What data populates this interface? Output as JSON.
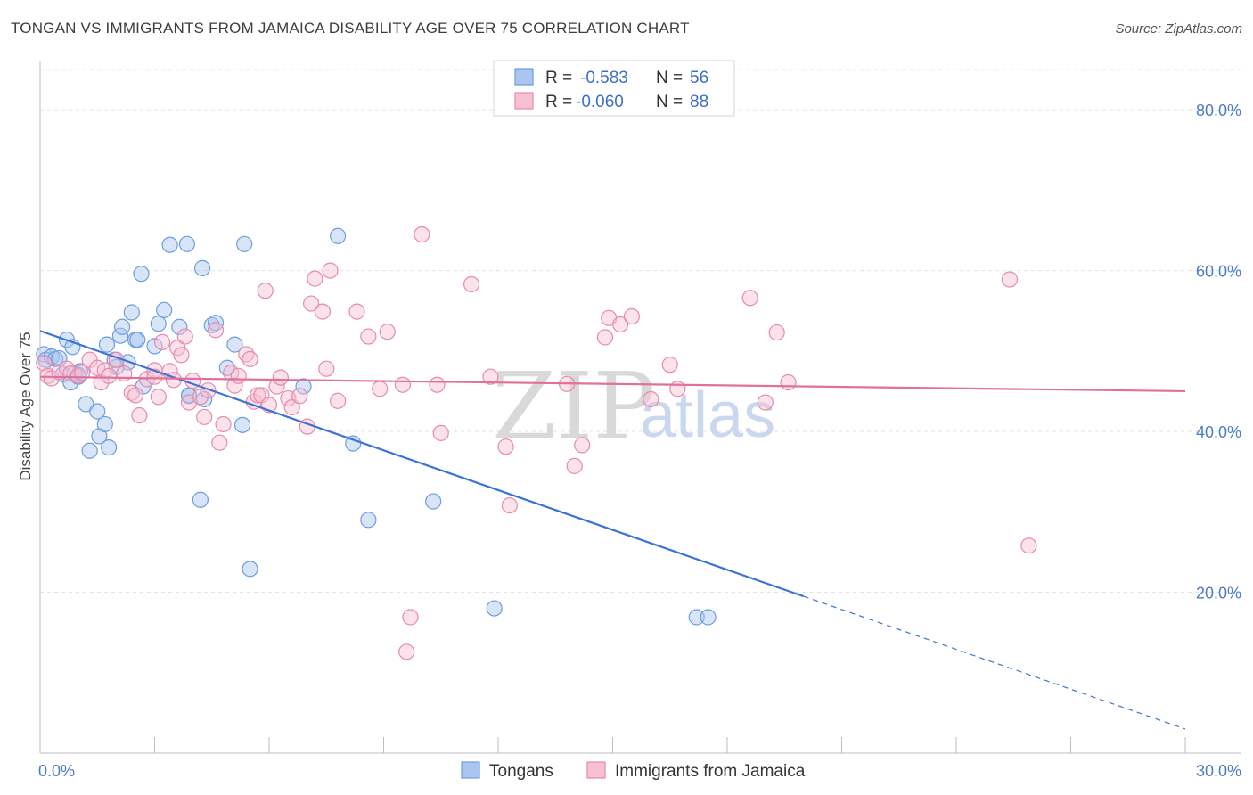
{
  "title": "TONGAN VS IMMIGRANTS FROM JAMAICA DISABILITY AGE OVER 75 CORRELATION CHART",
  "source": "Source: ZipAtlas.com",
  "watermark": {
    "zip": "ZIP",
    "atlas": "atlas"
  },
  "legend": {
    "rows": [
      {
        "r_label": "R =",
        "r_value": "-0.583",
        "n_label": "N =",
        "n_value": "56",
        "color": "#a9c6ee",
        "stroke": "#6d9de0"
      },
      {
        "r_label": "R =",
        "r_value": "-0.060",
        "n_label": "N =",
        "n_value": "88",
        "color": "#f7bfd2",
        "stroke": "#e88aad"
      }
    ]
  },
  "chart_data": {
    "type": "scatter",
    "title": "TONGAN VS IMMIGRANTS FROM JAMAICA DISABILITY AGE OVER 75 CORRELATION CHART",
    "xlabel": "",
    "ylabel": "Disability Age Over 75",
    "xlim": [
      0,
      30
    ],
    "ylim": [
      0,
      85
    ],
    "x_ticks": [
      {
        "value": 0,
        "label": "0.0%"
      },
      {
        "value": 30,
        "label": "30.0%"
      }
    ],
    "y_ticks": [
      {
        "value": 20,
        "label": "20.0%"
      },
      {
        "value": 40,
        "label": "40.0%"
      },
      {
        "value": 60,
        "label": "60.0%"
      },
      {
        "value": 80,
        "label": "80.0%"
      }
    ],
    "grid": true,
    "legend_position": "top-center",
    "series": [
      {
        "name": "Tongans",
        "color": "#6d9de0",
        "fill": "#a9c6ee",
        "line_color": "#3b74d4",
        "trend": {
          "x0": 0,
          "y0": 52.5,
          "x1": 20.0,
          "y1": 19.5,
          "extend_x": 30,
          "extend_y": 3.0
        },
        "points": [
          [
            0.1,
            49.6
          ],
          [
            0.15,
            48.9
          ],
          [
            0.3,
            49.3
          ],
          [
            0.4,
            49.0
          ],
          [
            0.5,
            49.1
          ],
          [
            0.6,
            47.1
          ],
          [
            0.7,
            51.4
          ],
          [
            0.8,
            46.1
          ],
          [
            0.85,
            50.5
          ],
          [
            1.0,
            47.0
          ],
          [
            1.05,
            47.5
          ],
          [
            1.2,
            43.4
          ],
          [
            1.3,
            37.6
          ],
          [
            1.5,
            42.5
          ],
          [
            1.55,
            39.4
          ],
          [
            1.7,
            40.9
          ],
          [
            1.8,
            38.0
          ],
          [
            1.75,
            50.8
          ],
          [
            1.95,
            48.9
          ],
          [
            2.1,
            51.9
          ],
          [
            2.15,
            53.0
          ],
          [
            2.3,
            48.6
          ],
          [
            2.4,
            54.8
          ],
          [
            2.5,
            51.4
          ],
          [
            2.55,
            51.4
          ],
          [
            2.65,
            59.6
          ],
          [
            2.7,
            45.6
          ],
          [
            3.0,
            50.6
          ],
          [
            3.1,
            53.4
          ],
          [
            3.25,
            55.1
          ],
          [
            3.4,
            63.2
          ],
          [
            3.65,
            53.0
          ],
          [
            3.85,
            63.3
          ],
          [
            3.9,
            44.4
          ],
          [
            4.2,
            31.5
          ],
          [
            4.25,
            60.3
          ],
          [
            4.5,
            53.2
          ],
          [
            4.6,
            53.5
          ],
          [
            4.9,
            47.9
          ],
          [
            5.1,
            50.8
          ],
          [
            5.3,
            40.8
          ],
          [
            5.35,
            63.3
          ],
          [
            5.5,
            22.9
          ],
          [
            6.9,
            45.6
          ],
          [
            7.8,
            64.3
          ],
          [
            8.2,
            38.5
          ],
          [
            8.6,
            29.0
          ],
          [
            10.3,
            31.3
          ],
          [
            11.9,
            18.0
          ],
          [
            17.2,
            16.9
          ],
          [
            17.5,
            16.9
          ],
          [
            3.9,
            44.5
          ],
          [
            2.0,
            48.0
          ],
          [
            1.0,
            46.8
          ],
          [
            0.9,
            47.2
          ],
          [
            4.3,
            44.0
          ]
        ]
      },
      {
        "name": "Immigrants from Jamaica",
        "color": "#e88aad",
        "fill": "#f7bfd2",
        "line_color": "#e0719c",
        "trend": {
          "x0": 0,
          "y0": 46.8,
          "x1": 30,
          "y1": 45.0
        },
        "points": [
          [
            0.1,
            48.5
          ],
          [
            0.2,
            46.9
          ],
          [
            0.3,
            46.6
          ],
          [
            0.5,
            47.4
          ],
          [
            0.7,
            47.8
          ],
          [
            0.8,
            47.2
          ],
          [
            1.0,
            46.9
          ],
          [
            1.1,
            47.3
          ],
          [
            1.3,
            48.9
          ],
          [
            1.5,
            47.9
          ],
          [
            1.6,
            46.1
          ],
          [
            1.7,
            47.6
          ],
          [
            1.8,
            46.9
          ],
          [
            2.0,
            48.9
          ],
          [
            2.2,
            47.2
          ],
          [
            2.4,
            44.8
          ],
          [
            2.5,
            44.5
          ],
          [
            2.6,
            42.0
          ],
          [
            2.8,
            46.5
          ],
          [
            3.0,
            47.6
          ],
          [
            3.1,
            44.3
          ],
          [
            3.2,
            51.1
          ],
          [
            3.4,
            47.5
          ],
          [
            3.5,
            46.4
          ],
          [
            3.6,
            50.4
          ],
          [
            3.7,
            49.5
          ],
          [
            3.8,
            51.8
          ],
          [
            3.9,
            43.6
          ],
          [
            4.0,
            46.3
          ],
          [
            4.2,
            44.3
          ],
          [
            4.3,
            41.8
          ],
          [
            4.4,
            45.1
          ],
          [
            4.6,
            52.6
          ],
          [
            4.7,
            38.6
          ],
          [
            4.8,
            40.9
          ],
          [
            5.0,
            47.3
          ],
          [
            5.1,
            45.7
          ],
          [
            5.2,
            46.9
          ],
          [
            5.4,
            49.6
          ],
          [
            5.5,
            49.0
          ],
          [
            5.6,
            43.7
          ],
          [
            5.7,
            44.5
          ],
          [
            5.8,
            44.5
          ],
          [
            5.9,
            57.5
          ],
          [
            6.0,
            43.3
          ],
          [
            6.2,
            45.6
          ],
          [
            6.3,
            46.7
          ],
          [
            6.5,
            44.1
          ],
          [
            6.6,
            43.0
          ],
          [
            6.8,
            44.4
          ],
          [
            7.0,
            40.6
          ],
          [
            7.1,
            55.9
          ],
          [
            7.2,
            59.0
          ],
          [
            7.4,
            54.9
          ],
          [
            7.5,
            47.8
          ],
          [
            7.6,
            60.0
          ],
          [
            7.8,
            43.8
          ],
          [
            8.3,
            54.9
          ],
          [
            8.6,
            51.8
          ],
          [
            8.9,
            45.3
          ],
          [
            9.1,
            52.4
          ],
          [
            9.5,
            45.8
          ],
          [
            9.7,
            16.9
          ],
          [
            10.0,
            64.5
          ],
          [
            10.4,
            45.8
          ],
          [
            10.5,
            39.8
          ],
          [
            11.3,
            58.3
          ],
          [
            11.8,
            46.8
          ],
          [
            12.2,
            38.1
          ],
          [
            12.3,
            30.8
          ],
          [
            13.8,
            45.9
          ],
          [
            14.0,
            35.7
          ],
          [
            14.2,
            38.3
          ],
          [
            14.8,
            51.7
          ],
          [
            14.9,
            54.1
          ],
          [
            15.2,
            53.3
          ],
          [
            15.5,
            54.3
          ],
          [
            16.0,
            44.0
          ],
          [
            16.5,
            48.3
          ],
          [
            16.7,
            45.3
          ],
          [
            18.6,
            56.6
          ],
          [
            19.0,
            43.6
          ],
          [
            19.3,
            52.3
          ],
          [
            19.6,
            46.1
          ],
          [
            25.4,
            58.9
          ],
          [
            25.9,
            25.8
          ],
          [
            9.6,
            12.6
          ],
          [
            3.0,
            46.8
          ]
        ]
      }
    ]
  },
  "bottom_legend": [
    {
      "label": "Tongans",
      "fill": "#a9c6ee",
      "stroke": "#6d9de0"
    },
    {
      "label": "Immigrants from Jamaica",
      "fill": "#f7bfd2",
      "stroke": "#e88aad"
    }
  ]
}
